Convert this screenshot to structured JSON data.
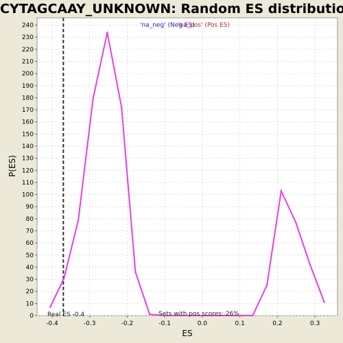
{
  "chart_data": {
    "type": "line",
    "title": "CYTAGCAAY_UNKNOWN: Random ES distribution",
    "xlabel": "ES",
    "ylabel": "P(ES)",
    "xlim": [
      -0.44,
      0.36
    ],
    "ylim": [
      0,
      246
    ],
    "x_ticks": [
      -0.4,
      -0.3,
      -0.2,
      -0.1,
      0.0,
      0.1,
      0.2,
      0.3
    ],
    "x_tick_labels": [
      "-0.4",
      "-0.3",
      "-0.2",
      "-0.1",
      "0.0",
      "0.1",
      "0.2",
      "0.3"
    ],
    "y_ticks": [
      0,
      10,
      20,
      30,
      40,
      50,
      60,
      70,
      80,
      90,
      100,
      110,
      120,
      130,
      140,
      150,
      160,
      170,
      180,
      190,
      200,
      210,
      220,
      230,
      240
    ],
    "grid": true,
    "series": [
      {
        "name": "P(ES)",
        "color": "#e83ee8",
        "x": [
          -0.405,
          -0.368,
          -0.33,
          -0.291,
          -0.253,
          -0.215,
          -0.178,
          -0.14,
          -0.1,
          -0.06,
          0.0,
          0.06,
          0.134,
          0.172,
          0.21,
          0.249,
          0.287,
          0.325
        ],
        "y": [
          7,
          31,
          79,
          179,
          234,
          172,
          36,
          1,
          0,
          0,
          0,
          0,
          0,
          25,
          103,
          77,
          42,
          11
        ]
      }
    ],
    "real_es": -0.37,
    "real_es_color": "#333333",
    "legend": {
      "position": "top-center",
      "entries": [
        {
          "label": "'na_neg' (Neg ES)",
          "color": "#2222cc"
        },
        {
          "label": "'na_pos' (Pos ES)",
          "color": "#cc2222"
        }
      ]
    },
    "annotations": {
      "real_es_label": "Real ES -0.4",
      "pos_scores_label": "Sets with pos scores: 26%"
    }
  }
}
